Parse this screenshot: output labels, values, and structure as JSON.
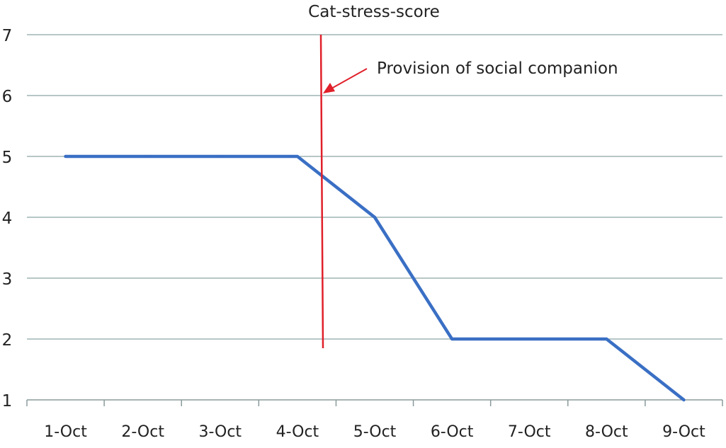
{
  "chart_data": {
    "type": "line",
    "title": "Cat-stress-score",
    "xlabel": "",
    "ylabel": "",
    "categories": [
      "1-Oct",
      "2-Oct",
      "3-Oct",
      "4-Oct",
      "5-Oct",
      "6-Oct",
      "7-Oct",
      "8-Oct",
      "9-Oct"
    ],
    "series": [
      {
        "values": [
          5,
          5,
          5,
          5,
          4,
          2,
          2,
          2,
          1
        ],
        "color": "#3a6fc4"
      }
    ],
    "ylim": [
      1,
      7
    ],
    "yticks": [
      1,
      2,
      3,
      4,
      5,
      6,
      7
    ],
    "grid": true,
    "annotation": {
      "text": "Provision of social companion",
      "marker_between": [
        "4-Oct",
        "5-Oct"
      ],
      "color": "#e0202a"
    },
    "gridline_color": "#9fb3b3"
  }
}
